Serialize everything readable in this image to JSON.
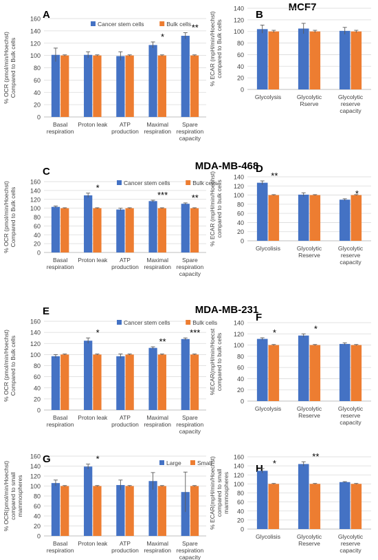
{
  "colors": {
    "series1": "#4472c4",
    "series2": "#ed7d31",
    "grid": "#d9d9d9",
    "axis": "#bfbfbf"
  },
  "cell_titles": [
    {
      "text": "MCF7"
    },
    {
      "text": "MDA-MB-468"
    },
    {
      "text": "MDA-MB-231"
    }
  ],
  "chart_data": [
    {
      "type": "bar",
      "panel": "A",
      "ylabel": [
        "% OCR (pmol/min/Hoechst)",
        "Compared to Bulk cells"
      ],
      "ylim": [
        0,
        160
      ],
      "ystep": 20,
      "grid": true,
      "legend": "top-center",
      "categories": [
        [
          "Basal",
          "respiration"
        ],
        [
          "Proton leak"
        ],
        [
          "ATP",
          "production"
        ],
        [
          "Maximal",
          "respiration"
        ],
        [
          "Spare",
          "respiration",
          "capacity"
        ]
      ],
      "series": [
        {
          "name": "Cancer stem cells",
          "values": [
            101,
            101,
            99,
            117,
            132
          ],
          "errors": [
            11,
            5,
            7,
            5,
            5
          ]
        },
        {
          "name": "Bulk cells",
          "values": [
            100,
            100,
            100,
            100,
            100
          ],
          "errors": [
            1,
            1,
            1,
            1,
            1
          ]
        }
      ],
      "annotations": [
        "",
        "",
        "",
        "*",
        "**"
      ]
    },
    {
      "type": "bar",
      "panel": "B",
      "ylabel": [
        "% ECAR (mpH/min/Hoechst)",
        "compared to Bulk cells"
      ],
      "ylim": [
        0,
        140
      ],
      "ystep": 20,
      "grid": true,
      "legend": "none",
      "categories": [
        [
          "Glycolysis"
        ],
        [
          "Glycolytic",
          "Rserve"
        ],
        [
          "Glycolytic",
          "reserve",
          "capacity"
        ]
      ],
      "series": [
        {
          "values": [
            104,
            105,
            101
          ],
          "errors": [
            7,
            9,
            6
          ]
        },
        {
          "values": [
            100,
            100,
            100
          ],
          "errors": [
            2,
            2,
            2
          ]
        }
      ],
      "annotations": [
        "",
        "",
        ""
      ]
    },
    {
      "type": "bar",
      "panel": "C",
      "ylabel": [
        "% OCR (pmol/min/Hoechst)",
        "Compared to Bulk cells"
      ],
      "ylim": [
        0,
        160
      ],
      "ystep": 20,
      "grid": true,
      "legend": "top-right",
      "categories": [
        [
          "Basal",
          "respiration"
        ],
        [
          "Proton leak"
        ],
        [
          "ATP",
          "production"
        ],
        [
          "Maximal",
          "respiration"
        ],
        [
          "Spare",
          "respiration",
          "capacity"
        ]
      ],
      "series": [
        {
          "name": "Cancer stem cells",
          "values": [
            103,
            129,
            97,
            116,
            110
          ],
          "errors": [
            2,
            5,
            3,
            2,
            2
          ]
        },
        {
          "name": "Bulk cells",
          "values": [
            100,
            100,
            100,
            100,
            100
          ],
          "errors": [
            1,
            1,
            1,
            1,
            1
          ]
        }
      ],
      "annotations": [
        "",
        "*",
        "",
        "***",
        "**"
      ]
    },
    {
      "type": "bar",
      "panel": "D",
      "ylabel": [
        "% ECAR (mpH/min/Hoechst)",
        "compared to bulk cells"
      ],
      "ylim": [
        0,
        140
      ],
      "ystep": 20,
      "grid": true,
      "legend": "none",
      "categories": [
        [
          "Glycolisis"
        ],
        [
          "Glycolytic",
          "Reserve"
        ],
        [
          "Glycolytic",
          "reserve",
          "capacity"
        ]
      ],
      "series": [
        {
          "values": [
            127,
            101,
            90
          ],
          "errors": [
            4,
            4,
            2
          ]
        },
        {
          "values": [
            100,
            100,
            100
          ],
          "errors": [
            1,
            1,
            1
          ]
        }
      ],
      "annotations": [
        "**",
        "",
        "*"
      ]
    },
    {
      "type": "bar",
      "panel": "E",
      "ylabel": [
        "% OCR (pmol/min/Hoechst)",
        "Compared to Bulk cells"
      ],
      "ylim": [
        0,
        160
      ],
      "ystep": 20,
      "grid": true,
      "legend": "top-right",
      "categories": [
        [
          "Basal",
          "respiration"
        ],
        [
          "Proton leak"
        ],
        [
          "ATP",
          "production"
        ],
        [
          "Maximal",
          "respiration"
        ],
        [
          "Spare",
          "respiration",
          "capacity"
        ]
      ],
      "series": [
        {
          "name": "Cancer stem cells",
          "values": [
            97,
            125,
            97,
            112,
            128
          ],
          "errors": [
            3,
            5,
            4,
            2,
            2
          ]
        },
        {
          "name": "Bulk cells",
          "values": [
            100,
            100,
            100,
            100,
            100
          ],
          "errors": [
            1,
            1,
            1,
            1,
            1
          ]
        }
      ],
      "annotations": [
        "",
        "*",
        "",
        "**",
        "***"
      ]
    },
    {
      "type": "bar",
      "panel": "F",
      "ylabel": [
        "%ECAR(mpH/min/Hoecst",
        "compared to bulk cells"
      ],
      "ylim": [
        0,
        140
      ],
      "ystep": 20,
      "grid": true,
      "legend": "none",
      "categories": [
        [
          "Glycolysis"
        ],
        [
          "Glycolytic",
          "Reserve"
        ],
        [
          "Glycolytic",
          "reserve",
          "capacity"
        ]
      ],
      "series": [
        {
          "values": [
            111,
            117,
            102
          ],
          "errors": [
            2,
            3,
            2
          ]
        },
        {
          "values": [
            100,
            100,
            100
          ],
          "errors": [
            1,
            1,
            1
          ]
        }
      ],
      "annotations": [
        "*",
        "*",
        ""
      ]
    },
    {
      "type": "bar",
      "panel": "G",
      "ylabel": [
        "% OCR(pmol/min/Hoechst)",
        "compared to small",
        "mammospheres"
      ],
      "ylim": [
        0,
        160
      ],
      "ystep": 20,
      "grid": true,
      "legend": "top-right",
      "categories": [
        [
          "Basal",
          "respiration"
        ],
        [
          "Proton leak"
        ],
        [
          "ATP",
          "production"
        ],
        [
          "Maximal",
          "respiration"
        ],
        [
          "Spare",
          "respiration",
          "capacity"
        ]
      ],
      "series": [
        {
          "name": "Large",
          "values": [
            106,
            139,
            102,
            110,
            88
          ],
          "errors": [
            6,
            5,
            10,
            17,
            40
          ]
        },
        {
          "name": "Small",
          "values": [
            100,
            100,
            100,
            100,
            100
          ],
          "errors": [
            1,
            1,
            1,
            1,
            1
          ]
        }
      ],
      "annotations": [
        "",
        "*",
        "",
        "",
        ""
      ]
    },
    {
      "type": "bar",
      "panel": "H",
      "ylabel": [
        "% ECAR(mpH/min/Hoechst)",
        "compared to small",
        "mammospheres"
      ],
      "ylim": [
        0,
        160
      ],
      "ystep": 20,
      "grid": true,
      "legend": "none",
      "categories": [
        [
          "Glycolisis"
        ],
        [
          "Glycolytic",
          "Reserve"
        ],
        [
          "Glycolytic",
          "reserve",
          "capacity"
        ]
      ],
      "series": [
        {
          "values": [
            129,
            144,
            104
          ],
          "errors": [
            5,
            5,
            1
          ]
        },
        {
          "values": [
            100,
            100,
            100
          ],
          "errors": [
            1,
            1,
            1
          ]
        }
      ],
      "annotations": [
        "*",
        "**",
        ""
      ]
    }
  ]
}
